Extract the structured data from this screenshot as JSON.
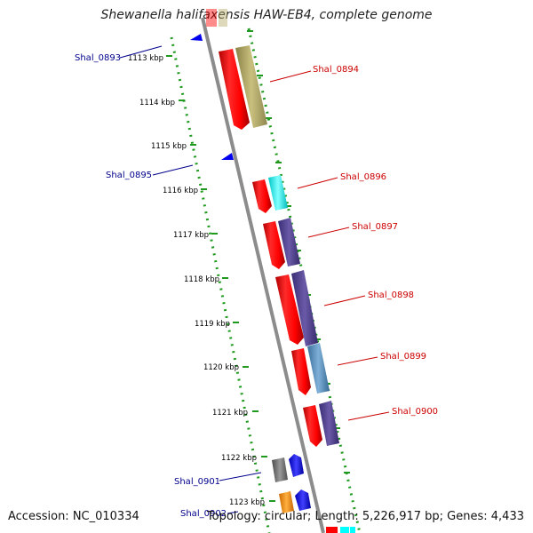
{
  "header": {
    "title": "Shewanella halifaxensis HAW-EB4, complete genome"
  },
  "footer": {
    "accession": "Accession: NC_010334",
    "summary": "Topology: circular; Length: 5,226,917 bp; Genes: 4,433"
  },
  "colors": {
    "axis": "#8c8c8c",
    "scale_dots": "#1f9a1f",
    "forward_label": "#00008b",
    "reverse_label": "#cc0000",
    "cds_red": "#ff0000",
    "olive": "#b7ad6a",
    "cyan": "#00ffff",
    "purple": "#4b3c8c",
    "steelblue": "#4682b4",
    "gray": "#707070",
    "blue": "#0000ff",
    "orange": "#ff8c00"
  },
  "scale": {
    "ticks": [
      "1113 kbp",
      "1114 kbp",
      "1115 kbp",
      "1116 kbp",
      "1117 kbp",
      "1118 kbp",
      "1119 kbp",
      "1120 kbp",
      "1121 kbp",
      "1122 kbp",
      "1123 kbp"
    ]
  },
  "genes": {
    "forward": [
      "Shal_0893",
      "Shal_0895",
      "Shal_0901",
      "Shal_0902"
    ],
    "reverse": [
      "Shal_0894",
      "Shal_0896",
      "Shal_0897",
      "Shal_0898",
      "Shal_0899",
      "Shal_0900"
    ]
  }
}
